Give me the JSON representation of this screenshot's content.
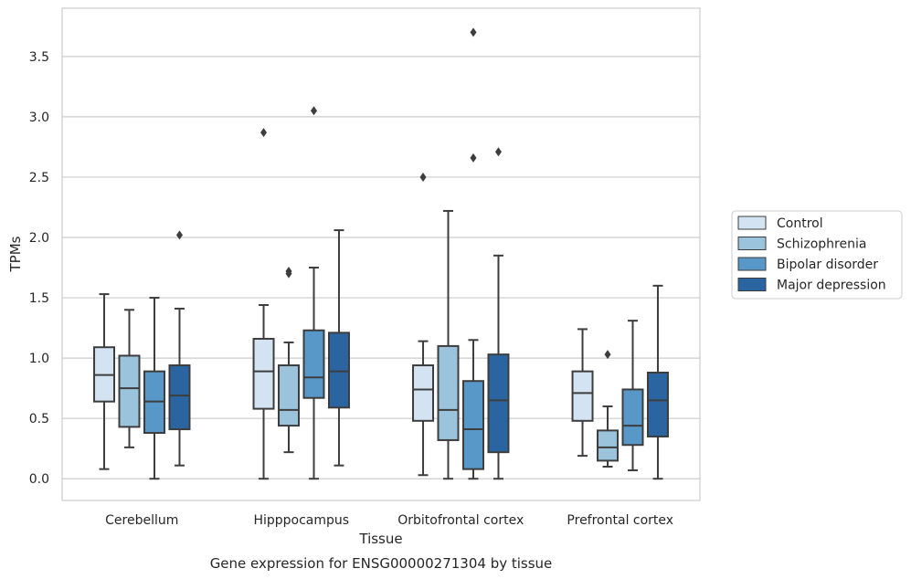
{
  "chart_data": {
    "type": "box",
    "title": "",
    "caption": "Gene expression for ENSG00000271304 by tissue",
    "xlabel": "Tissue",
    "ylabel": "TPMs",
    "ylim": [
      -0.18,
      3.9
    ],
    "yticks": [
      0.0,
      0.5,
      1.0,
      1.5,
      2.0,
      2.5,
      3.0,
      3.5
    ],
    "ytick_labels": [
      "0.0",
      "0.5",
      "1.0",
      "1.5",
      "2.0",
      "2.5",
      "3.0",
      "3.5"
    ],
    "grid": "horizontal",
    "legend_position": "right",
    "categories": [
      "Cerebellum",
      "Hipppocampus",
      "Orbitofrontal cortex",
      "Prefrontal cortex"
    ],
    "series": [
      {
        "name": "Control",
        "color": "#d4e3f2",
        "boxes": [
          {
            "whisker_low": 0.08,
            "q1": 0.64,
            "median": 0.86,
            "q3": 1.09,
            "whisker_high": 1.53,
            "outliers": []
          },
          {
            "whisker_low": 0.0,
            "q1": 0.58,
            "median": 0.89,
            "q3": 1.16,
            "whisker_high": 1.44,
            "outliers": [
              2.87
            ]
          },
          {
            "whisker_low": 0.03,
            "q1": 0.48,
            "median": 0.74,
            "q3": 0.94,
            "whisker_high": 1.14,
            "outliers": [
              2.5
            ]
          },
          {
            "whisker_low": 0.19,
            "q1": 0.48,
            "median": 0.71,
            "q3": 0.89,
            "whisker_high": 1.24,
            "outliers": []
          }
        ]
      },
      {
        "name": "Schizophrenia",
        "color": "#9bc4dc",
        "boxes": [
          {
            "whisker_low": 0.26,
            "q1": 0.43,
            "median": 0.75,
            "q3": 1.02,
            "whisker_high": 1.4,
            "outliers": []
          },
          {
            "whisker_low": 0.22,
            "q1": 0.44,
            "median": 0.57,
            "q3": 0.94,
            "whisker_high": 1.13,
            "outliers": [
              1.72,
              1.7
            ]
          },
          {
            "whisker_low": 0.0,
            "q1": 0.32,
            "median": 0.57,
            "q3": 1.1,
            "whisker_high": 2.22,
            "outliers": []
          },
          {
            "whisker_low": 0.1,
            "q1": 0.15,
            "median": 0.26,
            "q3": 0.4,
            "whisker_high": 0.6,
            "outliers": [
              1.03
            ]
          }
        ]
      },
      {
        "name": "Bipolar disorder",
        "color": "#5898c8",
        "boxes": [
          {
            "whisker_low": 0.0,
            "q1": 0.38,
            "median": 0.64,
            "q3": 0.89,
            "whisker_high": 1.5,
            "outliers": []
          },
          {
            "whisker_low": 0.0,
            "q1": 0.67,
            "median": 0.84,
            "q3": 1.23,
            "whisker_high": 1.75,
            "outliers": [
              3.05
            ]
          },
          {
            "whisker_low": 0.0,
            "q1": 0.08,
            "median": 0.41,
            "q3": 0.81,
            "whisker_high": 1.15,
            "outliers": [
              2.66,
              3.7
            ]
          },
          {
            "whisker_low": 0.07,
            "q1": 0.28,
            "median": 0.44,
            "q3": 0.74,
            "whisker_high": 1.31,
            "outliers": []
          }
        ]
      },
      {
        "name": "Major depression",
        "color": "#2a65a2",
        "boxes": [
          {
            "whisker_low": 0.11,
            "q1": 0.41,
            "median": 0.69,
            "q3": 0.94,
            "whisker_high": 1.41,
            "outliers": [
              2.02
            ]
          },
          {
            "whisker_low": 0.11,
            "q1": 0.59,
            "median": 0.89,
            "q3": 1.21,
            "whisker_high": 2.06,
            "outliers": []
          },
          {
            "whisker_low": 0.0,
            "q1": 0.22,
            "median": 0.65,
            "q3": 1.03,
            "whisker_high": 1.85,
            "outliers": [
              2.71
            ]
          },
          {
            "whisker_low": 0.0,
            "q1": 0.35,
            "median": 0.65,
            "q3": 0.88,
            "whisker_high": 1.6,
            "outliers": []
          }
        ]
      }
    ]
  }
}
